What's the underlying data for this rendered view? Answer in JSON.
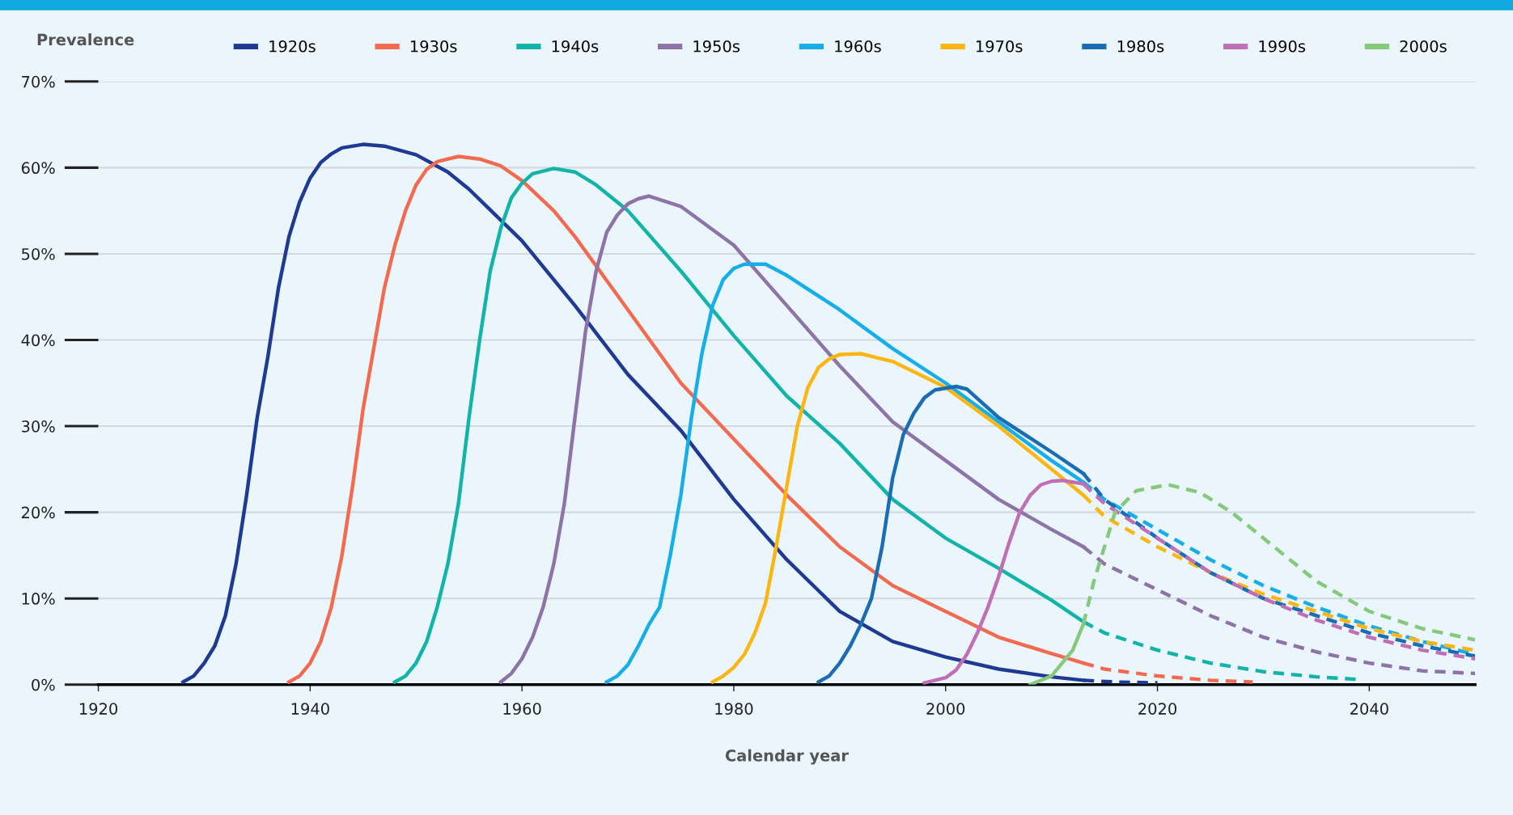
{
  "chart_data": {
    "type": "line",
    "ylabel": "Prevalence",
    "xlabel": "Calendar year",
    "xlim": [
      1920,
      2050
    ],
    "xticks": [
      1920,
      1940,
      1960,
      1980,
      2000,
      2020,
      2040
    ],
    "ylim": [
      0,
      70
    ],
    "yticks": [
      {
        "value": 0,
        "label": "0%"
      },
      {
        "value": 10,
        "label": "10%"
      },
      {
        "value": 20,
        "label": "20%"
      },
      {
        "value": 30,
        "label": "30%"
      },
      {
        "value": 40,
        "label": "40%"
      },
      {
        "value": 50,
        "label": "50%"
      },
      {
        "value": 60,
        "label": "60%"
      },
      {
        "value": 70,
        "label": "70%"
      }
    ],
    "grid": "y",
    "legend": "top",
    "marker": "none",
    "series": [
      {
        "name": "1920s",
        "color": "#1f3a93",
        "line_style": "solid",
        "x": [
          1928,
          1929,
          1930,
          1931,
          1932,
          1933,
          1934,
          1935,
          1936,
          1937,
          1938,
          1939,
          1940,
          1941,
          1942,
          1943,
          1945,
          1947,
          1950,
          1953,
          1955,
          1960,
          1965,
          1970,
          1975,
          1980,
          1985,
          1990,
          1995,
          2000,
          2005,
          2010,
          2013
        ],
        "values": [
          0.3,
          1,
          2.5,
          4.5,
          8,
          14,
          22,
          31,
          38,
          46,
          52,
          56,
          58.8,
          60.6,
          61.6,
          62.3,
          62.7,
          62.5,
          61.5,
          59.5,
          57.5,
          51.5,
          44,
          36,
          29.5,
          21.5,
          14.5,
          8.5,
          5,
          3.2,
          1.8,
          0.9,
          0.5
        ]
      },
      {
        "color": "#1f3a93",
        "line_style": "dashed",
        "x": [
          2013,
          2016,
          2020
        ],
        "values": [
          0.5,
          0.3,
          0.2
        ]
      },
      {
        "name": "1930s",
        "color": "#f26b50",
        "line_style": "solid",
        "x": [
          1938,
          1939,
          1940,
          1941,
          1942,
          1943,
          1944,
          1945,
          1946,
          1947,
          1948,
          1949,
          1950,
          1951,
          1952,
          1954,
          1956,
          1958,
          1960,
          1963,
          1965,
          1970,
          1975,
          1980,
          1985,
          1990,
          1995,
          2000,
          2005,
          2010,
          2013
        ],
        "values": [
          0.3,
          1,
          2.5,
          5,
          9,
          15,
          23,
          32,
          39,
          46,
          51,
          55,
          58,
          59.8,
          60.7,
          61.3,
          61,
          60.2,
          58.5,
          55,
          52,
          43.5,
          35,
          28.5,
          22,
          16,
          11.5,
          8.5,
          5.5,
          3.6,
          2.5
        ]
      },
      {
        "color": "#f26b50",
        "line_style": "dashed",
        "x": [
          2013,
          2015,
          2020,
          2025,
          2029
        ],
        "values": [
          2.5,
          1.8,
          1,
          0.5,
          0.3
        ]
      },
      {
        "name": "1940s",
        "color": "#12b3a8",
        "line_style": "solid",
        "x": [
          1948,
          1949,
          1950,
          1951,
          1952,
          1953,
          1954,
          1955,
          1956,
          1957,
          1958,
          1959,
          1960,
          1961,
          1963,
          1965,
          1967,
          1970,
          1975,
          1980,
          1985,
          1990,
          1995,
          2000,
          2005,
          2010,
          2013
        ],
        "values": [
          0.3,
          1,
          2.5,
          5,
          9,
          14,
          21,
          31,
          40,
          48,
          53,
          56.5,
          58.2,
          59.3,
          59.9,
          59.5,
          58,
          55,
          48,
          40.5,
          33.5,
          28,
          21.5,
          17,
          13.5,
          9.8,
          7.3
        ]
      },
      {
        "color": "#12b3a8",
        "line_style": "dashed",
        "x": [
          2013,
          2015,
          2020,
          2025,
          2030,
          2035,
          2039
        ],
        "values": [
          7.3,
          6,
          4,
          2.5,
          1.5,
          0.9,
          0.6
        ]
      },
      {
        "name": "1950s",
        "color": "#8e73a8",
        "line_style": "solid",
        "x": [
          1958,
          1959,
          1960,
          1961,
          1962,
          1963,
          1964,
          1965,
          1966,
          1967,
          1968,
          1969,
          1970,
          1971,
          1972,
          1975,
          1980,
          1985,
          1990,
          1995,
          2000,
          2005,
          2010,
          2013
        ],
        "values": [
          0.3,
          1.3,
          3,
          5.5,
          9,
          14,
          21,
          31,
          41,
          48,
          52.5,
          54.5,
          55.8,
          56.4,
          56.7,
          55.5,
          51,
          44,
          37,
          30.5,
          26,
          21.5,
          18,
          16
        ]
      },
      {
        "color": "#8e73a8",
        "line_style": "dashed",
        "x": [
          2013,
          2015,
          2020,
          2025,
          2030,
          2035,
          2040,
          2045,
          2050
        ],
        "values": [
          16,
          14,
          11,
          8,
          5.5,
          3.8,
          2.5,
          1.6,
          1.3
        ]
      },
      {
        "name": "1960s",
        "color": "#15aee8",
        "line_style": "solid",
        "x": [
          1968,
          1969,
          1970,
          1971,
          1972,
          1973,
          1974,
          1975,
          1976,
          1977,
          1978,
          1979,
          1980,
          1981,
          1983,
          1985,
          1990,
          1995,
          2000,
          2005,
          2010,
          2013
        ],
        "values": [
          0.3,
          1,
          2.3,
          4.5,
          7,
          9,
          15,
          22,
          31,
          38.5,
          44,
          47,
          48.3,
          48.8,
          48.8,
          47.5,
          43.5,
          39,
          35,
          30.5,
          26,
          23.5
        ]
      },
      {
        "color": "#15aee8",
        "line_style": "dashed",
        "x": [
          2013,
          2015,
          2020,
          2025,
          2030,
          2035,
          2040,
          2045,
          2050
        ],
        "values": [
          23.5,
          21.5,
          18,
          14.5,
          11.5,
          9,
          6.8,
          5,
          3.5
        ]
      },
      {
        "name": "1970s",
        "color": "#fbb614",
        "line_style": "solid",
        "x": [
          1978,
          1979,
          1980,
          1981,
          1982,
          1983,
          1984,
          1985,
          1986,
          1987,
          1988,
          1989,
          1990,
          1992,
          1995,
          2000,
          2005,
          2010,
          2013
        ],
        "values": [
          0.3,
          1,
          2,
          3.5,
          6,
          9.5,
          16,
          23,
          30,
          34.5,
          36.8,
          37.8,
          38.3,
          38.4,
          37.5,
          34.5,
          30,
          25,
          22
        ]
      },
      {
        "color": "#fbb614",
        "line_style": "dashed",
        "x": [
          2013,
          2015,
          2020,
          2025,
          2030,
          2035,
          2040,
          2045,
          2050
        ],
        "values": [
          22,
          19.5,
          16,
          13,
          10.5,
          8.5,
          6.5,
          5,
          4
        ]
      },
      {
        "name": "1980s",
        "color": "#1a6db5",
        "line_style": "solid",
        "x": [
          1988,
          1989,
          1990,
          1991,
          1992,
          1993,
          1994,
          1995,
          1996,
          1997,
          1998,
          1999,
          2001,
          2002,
          2005,
          2010,
          2013
        ],
        "values": [
          0.3,
          1,
          2.5,
          4.5,
          7,
          10,
          16,
          24,
          29,
          31.5,
          33.3,
          34.2,
          34.6,
          34.3,
          31,
          27,
          24.5
        ]
      },
      {
        "color": "#1a6db5",
        "line_style": "dashed",
        "x": [
          2013,
          2015,
          2020,
          2025,
          2030,
          2035,
          2040,
          2045,
          2050
        ],
        "values": [
          24.5,
          21.5,
          17,
          13,
          10,
          8,
          6,
          4.5,
          3.3
        ]
      },
      {
        "name": "1990s",
        "color": "#c06fb4",
        "line_style": "solid",
        "x": [
          1998,
          2000,
          2001,
          2002,
          2003,
          2004,
          2005,
          2006,
          2007,
          2008,
          2009,
          2010,
          2011,
          2013
        ],
        "values": [
          0.2,
          0.8,
          1.7,
          3.5,
          6,
          9,
          12.5,
          16.5,
          20,
          22,
          23.2,
          23.6,
          23.7,
          23.3
        ]
      },
      {
        "color": "#c06fb4",
        "line_style": "dashed",
        "x": [
          2013,
          2015,
          2020,
          2025,
          2030,
          2035,
          2040,
          2045,
          2050
        ],
        "values": [
          23.3,
          21,
          17,
          13,
          10,
          7.5,
          5.5,
          4,
          3
        ]
      },
      {
        "name": "2000s",
        "color": "#86c97c",
        "line_style": "solid",
        "x": [
          2008,
          2010,
          2012,
          2013
        ],
        "values": [
          0,
          1,
          4,
          7
        ]
      },
      {
        "color": "#86c97c",
        "line_style": "dashed",
        "x": [
          2013,
          2014,
          2016,
          2018,
          2021,
          2024,
          2027,
          2030,
          2035,
          2040,
          2045,
          2050
        ],
        "values": [
          7,
          12,
          20,
          22.5,
          23.2,
          22.3,
          20,
          17,
          12,
          8.5,
          6.5,
          5.2
        ]
      }
    ]
  }
}
